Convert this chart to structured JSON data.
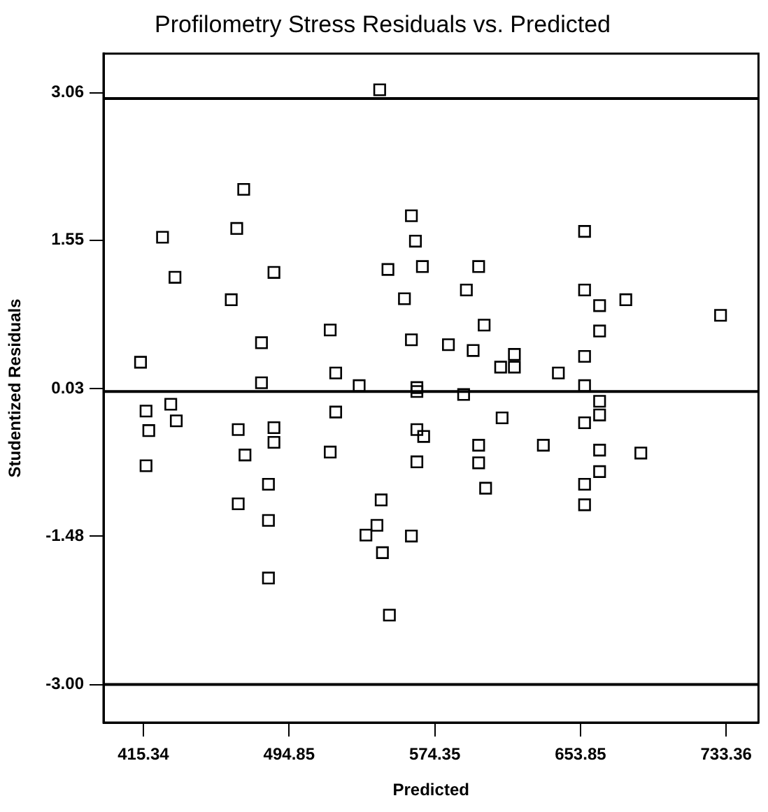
{
  "chart_data": {
    "type": "scatter",
    "title": "Profilometry Stress Residuals vs. Predicted",
    "xlabel": "Predicted",
    "ylabel": "Studentized Residuals",
    "marker": "square",
    "color": "#000000",
    "x": [
      470.1,
      466.3,
      425.8,
      432.6,
      486.6,
      463.3,
      517.3,
      479.8,
      413.8,
      520.3,
      479.8,
      533.1,
      544.3,
      561.6,
      563.8,
      548.8,
      567.6,
      598.3,
      656.1,
      557.8,
      591.6,
      656.1,
      664.3,
      678.6,
      730.3,
      601.3,
      664.3,
      561.6,
      581.8,
      595.3,
      617.8,
      610.3,
      617.8,
      641.8,
      656.1,
      656.1,
      564.6,
      416.8,
      430.3,
      433.3,
      418.3,
      467.1,
      486.6,
      486.6,
      470.8,
      520.3,
      517.3,
      416.8,
      483.6,
      467.1,
      483.6,
      545.1,
      536.8,
      542.8,
      545.8,
      483.6,
      549.6,
      564.6,
      590.1,
      664.3,
      664.3,
      656.1,
      611.1,
      564.6,
      568.3,
      598.3,
      633.6,
      664.3,
      686.8,
      564.6,
      598.3,
      664.3,
      656.1,
      602.1,
      656.1,
      561.6
    ],
    "values": [
      2.07,
      1.67,
      1.58,
      1.17,
      1.22,
      0.94,
      0.63,
      0.5,
      0.3,
      0.19,
      0.09,
      0.06,
      3.09,
      1.8,
      1.54,
      1.25,
      1.28,
      1.28,
      1.64,
      0.95,
      1.04,
      1.04,
      0.88,
      0.94,
      0.78,
      0.68,
      0.62,
      0.53,
      0.48,
      0.42,
      0.38,
      0.25,
      0.25,
      0.19,
      0.36,
      0.06,
      0.04,
      -0.2,
      -0.13,
      -0.3,
      -0.4,
      -0.39,
      -0.37,
      -0.52,
      -0.65,
      -0.21,
      -0.62,
      -0.76,
      -0.95,
      -1.15,
      -1.32,
      -1.11,
      -1.47,
      -1.37,
      -1.65,
      -1.91,
      -2.29,
      0.0,
      -0.03,
      -0.1,
      -0.24,
      -0.32,
      -0.27,
      -0.39,
      -0.46,
      -0.55,
      -0.55,
      -0.6,
      -0.63,
      -0.72,
      -0.73,
      -0.82,
      -0.95,
      -0.99,
      -1.16,
      -1.48
    ],
    "xlim": [
      393.6,
      751
    ],
    "ylim": [
      -3.39,
      3.46
    ],
    "xticks": [
      415.34,
      494.85,
      574.35,
      653.85,
      733.36
    ],
    "yticks": [
      3.06,
      1.55,
      0.03,
      -1.48,
      {
        "value": -3,
        "label": "-3.00"
      }
    ],
    "ref_lines": [
      {
        "axis": "y",
        "value": 3,
        "color": "#000000"
      },
      {
        "axis": "y",
        "value": 0,
        "color": "#000000"
      },
      {
        "axis": "y",
        "value": -3,
        "color": "#000000"
      }
    ]
  }
}
